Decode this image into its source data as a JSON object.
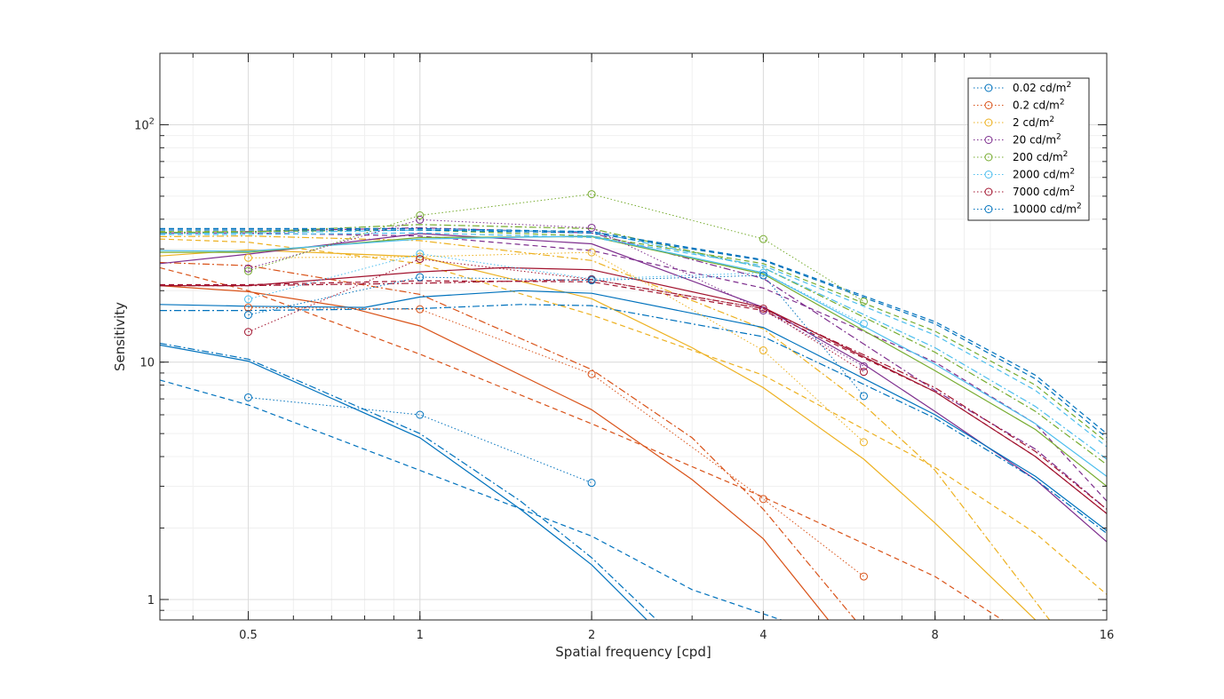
{
  "chart_data": {
    "type": "line",
    "xlabel": "Spatial frequency [cpd]",
    "ylabel": "Sensitivity",
    "x_scale": "log",
    "y_scale": "log",
    "xlim": [
      0.35,
      16
    ],
    "ylim": [
      0.82,
      200
    ],
    "x_ticks": [
      0.5,
      1,
      2,
      4,
      8,
      16
    ],
    "x_tick_labels": [
      "0.5",
      "1",
      "2",
      "4",
      "8",
      "16"
    ],
    "y_ticks": [
      1,
      10,
      100
    ],
    "y_tick_labels": [
      {
        "base": "1",
        "exp": ""
      },
      {
        "base": "10",
        "exp": ""
      },
      {
        "base": "10",
        "exp": "2"
      }
    ],
    "grid": true,
    "legend_position": "top-right",
    "unit_base": "cd/m",
    "unit_exp": "2",
    "series": [
      {
        "name": "0.02",
        "color": "#0072BD",
        "points": [
          [
            0.5,
            7.1
          ],
          [
            1,
            6.0
          ],
          [
            2,
            3.1
          ]
        ]
      },
      {
        "name": "0.2",
        "color": "#D95319",
        "points": [
          [
            0.5,
            17.0
          ],
          [
            1,
            16.7
          ],
          [
            2,
            8.9
          ],
          [
            4,
            2.65
          ],
          [
            6,
            1.25
          ]
        ]
      },
      {
        "name": "2",
        "color": "#EDB120",
        "points": [
          [
            0.5,
            27.5
          ],
          [
            1,
            27.8
          ],
          [
            2,
            29.0
          ],
          [
            4,
            11.2
          ],
          [
            6,
            4.6
          ]
        ]
      },
      {
        "name": "20",
        "color": "#7E2F8E",
        "points": [
          [
            0.5,
            24.8
          ],
          [
            1,
            39.8
          ],
          [
            2,
            36.8
          ],
          [
            4,
            16.5
          ],
          [
            6,
            9.6
          ]
        ]
      },
      {
        "name": "200",
        "color": "#77AC30",
        "points": [
          [
            0.5,
            24.2
          ],
          [
            1,
            41.5
          ],
          [
            2,
            51.0
          ],
          [
            4,
            33.0
          ],
          [
            6,
            18.0
          ]
        ]
      },
      {
        "name": "2000",
        "color": "#4DBEEE",
        "points": [
          [
            0.5,
            18.4
          ],
          [
            1,
            28.6
          ],
          [
            2,
            22.4
          ],
          [
            4,
            23.8
          ],
          [
            6,
            14.5
          ]
        ]
      },
      {
        "name": "7000",
        "color": "#A2142F",
        "points": [
          [
            0.5,
            13.4
          ],
          [
            1,
            27.2
          ],
          [
            2,
            22.3
          ],
          [
            4,
            16.8
          ],
          [
            6,
            9.1
          ]
        ]
      },
      {
        "name": "10000",
        "color": "#0072BD",
        "points": [
          [
            0.5,
            15.8
          ],
          [
            1,
            22.8
          ],
          [
            2,
            22.1
          ],
          [
            4,
            23.2
          ],
          [
            6,
            7.2
          ]
        ]
      }
    ],
    "model_curves": [
      {
        "color": "#0072BD",
        "style": "solid",
        "points": [
          [
            0.35,
            11.8
          ],
          [
            0.5,
            10.1
          ],
          [
            1,
            4.8
          ],
          [
            1.5,
            2.4
          ],
          [
            2,
            1.4
          ],
          [
            2.5,
            0.82
          ]
        ]
      },
      {
        "color": "#0072BD",
        "style": "dashdot",
        "points": [
          [
            0.35,
            12.0
          ],
          [
            0.5,
            10.3
          ],
          [
            1,
            5.0
          ],
          [
            1.5,
            2.6
          ],
          [
            2,
            1.5
          ],
          [
            2.6,
            0.82
          ]
        ]
      },
      {
        "color": "#0072BD",
        "style": "dashed",
        "points": [
          [
            0.35,
            8.4
          ],
          [
            0.5,
            6.6
          ],
          [
            1,
            3.5
          ],
          [
            2,
            1.85
          ],
          [
            3,
            1.1
          ],
          [
            4.3,
            0.82
          ]
        ]
      },
      {
        "color": "#D95319",
        "style": "solid",
        "points": [
          [
            0.35,
            21.0
          ],
          [
            0.5,
            19.8
          ],
          [
            0.75,
            17.0
          ],
          [
            1,
            14.2
          ],
          [
            2,
            6.3
          ],
          [
            3,
            3.2
          ],
          [
            4,
            1.8
          ],
          [
            5.2,
            0.82
          ]
        ]
      },
      {
        "color": "#D95319",
        "style": "dashdot",
        "points": [
          [
            0.35,
            26.3
          ],
          [
            0.5,
            25.5
          ],
          [
            1,
            19.3
          ],
          [
            2,
            9.3
          ],
          [
            3,
            4.8
          ],
          [
            4,
            2.4
          ],
          [
            5.8,
            0.82
          ]
        ]
      },
      {
        "color": "#D95319",
        "style": "dashed",
        "points": [
          [
            0.35,
            25.0
          ],
          [
            0.5,
            20.0
          ],
          [
            1,
            10.8
          ],
          [
            2,
            5.5
          ],
          [
            4,
            2.7
          ],
          [
            8,
            1.25
          ],
          [
            10.5,
            0.82
          ]
        ]
      },
      {
        "color": "#EDB120",
        "style": "solid",
        "points": [
          [
            0.35,
            28.0
          ],
          [
            0.5,
            29.7
          ],
          [
            1,
            27.8
          ],
          [
            2,
            18.5
          ],
          [
            3,
            11.5
          ],
          [
            4,
            7.8
          ],
          [
            6,
            3.9
          ],
          [
            8,
            2.1
          ],
          [
            12,
            0.82
          ]
        ]
      },
      {
        "color": "#EDB120",
        "style": "dashdot",
        "points": [
          [
            0.35,
            33.8
          ],
          [
            0.5,
            34.0
          ],
          [
            1,
            32.5
          ],
          [
            2,
            26.8
          ],
          [
            4,
            13.8
          ],
          [
            6,
            6.6
          ],
          [
            8,
            3.5
          ],
          [
            12.7,
            0.82
          ]
        ]
      },
      {
        "color": "#EDB120",
        "style": "dashed",
        "points": [
          [
            0.35,
            33.0
          ],
          [
            0.5,
            32.0
          ],
          [
            1,
            26.0
          ],
          [
            2,
            15.8
          ],
          [
            4,
            8.8
          ],
          [
            8,
            3.6
          ],
          [
            12,
            1.9
          ],
          [
            16,
            1.05
          ]
        ]
      },
      {
        "color": "#7E2F8E",
        "style": "solid",
        "points": [
          [
            0.35,
            26.0
          ],
          [
            0.5,
            28.5
          ],
          [
            1,
            34.8
          ],
          [
            2,
            31.5
          ],
          [
            4,
            17.0
          ],
          [
            6,
            9.8
          ],
          [
            8,
            6.2
          ],
          [
            12,
            3.2
          ],
          [
            16,
            1.75
          ]
        ]
      },
      {
        "color": "#7E2F8E",
        "style": "dashdot",
        "points": [
          [
            0.35,
            35.0
          ],
          [
            0.5,
            35.5
          ],
          [
            1,
            36.8
          ],
          [
            2,
            35.0
          ],
          [
            4,
            22.5
          ],
          [
            8,
            7.6
          ],
          [
            12,
            4.3
          ],
          [
            16,
            2.4
          ]
        ]
      },
      {
        "color": "#7E2F8E",
        "style": "dashed",
        "points": [
          [
            0.35,
            35.0
          ],
          [
            0.5,
            35.0
          ],
          [
            1,
            34.0
          ],
          [
            2,
            29.5
          ],
          [
            4,
            20.5
          ],
          [
            8,
            10.0
          ],
          [
            12,
            5.5
          ],
          [
            16,
            2.6
          ]
        ]
      },
      {
        "color": "#77AC30",
        "style": "solid",
        "points": [
          [
            0.35,
            29.0
          ],
          [
            0.5,
            29.0
          ],
          [
            1,
            33.5
          ],
          [
            2,
            33.8
          ],
          [
            4,
            23.5
          ],
          [
            8,
            9.2
          ],
          [
            12,
            5.2
          ],
          [
            16,
            3.0
          ]
        ]
      },
      {
        "color": "#77AC30",
        "style": "dashdot",
        "points": [
          [
            0.35,
            35.2
          ],
          [
            0.5,
            35.3
          ],
          [
            1,
            38.0
          ],
          [
            2,
            36.5
          ],
          [
            4,
            25.0
          ],
          [
            8,
            11.0
          ],
          [
            12,
            6.2
          ],
          [
            16,
            3.7
          ]
        ]
      },
      {
        "color": "#77AC30",
        "style": "dashed",
        "points": [
          [
            0.35,
            35.5
          ],
          [
            0.5,
            35.5
          ],
          [
            1,
            36.0
          ],
          [
            2,
            34.0
          ],
          [
            4,
            26.0
          ],
          [
            8,
            13.5
          ],
          [
            12,
            8.0
          ],
          [
            16,
            4.6
          ]
        ]
      },
      {
        "color": "#4DBEEE",
        "style": "solid",
        "points": [
          [
            0.35,
            29.5
          ],
          [
            0.5,
            29.3
          ],
          [
            1,
            33.0
          ],
          [
            2,
            34.0
          ],
          [
            4,
            23.8
          ],
          [
            8,
            9.8
          ],
          [
            12,
            5.5
          ],
          [
            16,
            3.3
          ]
        ]
      },
      {
        "color": "#4DBEEE",
        "style": "dashdot",
        "points": [
          [
            0.35,
            34.8
          ],
          [
            0.5,
            35.0
          ],
          [
            1,
            36.0
          ],
          [
            2,
            35.5
          ],
          [
            4,
            25.0
          ],
          [
            8,
            11.5
          ],
          [
            12,
            6.5
          ],
          [
            16,
            3.9
          ]
        ]
      },
      {
        "color": "#4DBEEE",
        "style": "dashed",
        "points": [
          [
            0.35,
            34.5
          ],
          [
            0.5,
            34.5
          ],
          [
            1,
            35.0
          ],
          [
            2,
            33.5
          ],
          [
            4,
            25.5
          ],
          [
            8,
            13.0
          ],
          [
            12,
            7.6
          ],
          [
            16,
            4.4
          ]
        ]
      },
      {
        "color": "#A2142F",
        "style": "solid",
        "points": [
          [
            0.35,
            21.0
          ],
          [
            0.5,
            21.0
          ],
          [
            1,
            24.0
          ],
          [
            1.4,
            25.0
          ],
          [
            2,
            24.5
          ],
          [
            4,
            17.0
          ],
          [
            8,
            7.5
          ],
          [
            12,
            4.0
          ],
          [
            16,
            2.3
          ]
        ]
      },
      {
        "color": "#A2142F",
        "style": "dashdot",
        "points": [
          [
            0.35,
            21.0
          ],
          [
            0.5,
            21.0
          ],
          [
            1,
            21.5
          ],
          [
            2,
            22.3
          ],
          [
            4,
            16.8
          ],
          [
            8,
            7.8
          ],
          [
            12,
            4.2
          ],
          [
            16,
            2.4
          ]
        ]
      },
      {
        "color": "#A2142F",
        "style": "dashed",
        "points": [
          [
            0.35,
            21.2
          ],
          [
            0.5,
            21.2
          ],
          [
            1,
            22.0
          ],
          [
            2,
            21.8
          ],
          [
            4,
            16.5
          ],
          [
            8,
            7.5
          ],
          [
            12,
            4.0
          ],
          [
            16,
            2.3
          ]
        ]
      },
      {
        "color": "#0072BD",
        "style": "solid",
        "points": [
          [
            0.35,
            17.5
          ],
          [
            0.5,
            17.2
          ],
          [
            0.8,
            17.0
          ],
          [
            1,
            18.8
          ],
          [
            1.5,
            20.0
          ],
          [
            2,
            19.5
          ],
          [
            4,
            14.0
          ],
          [
            8,
            6.0
          ],
          [
            12,
            3.3
          ],
          [
            16,
            1.95
          ]
        ]
      },
      {
        "color": "#0072BD",
        "style": "dashdot",
        "points": [
          [
            0.35,
            16.5
          ],
          [
            0.5,
            16.5
          ],
          [
            1,
            16.8
          ],
          [
            1.5,
            17.5
          ],
          [
            2,
            17.3
          ],
          [
            4,
            12.8
          ],
          [
            8,
            5.8
          ],
          [
            12,
            3.2
          ],
          [
            16,
            1.9
          ]
        ]
      },
      {
        "color": "#0072BD",
        "style": "dashed",
        "points": [
          [
            0.35,
            36.0
          ],
          [
            0.5,
            36.0
          ],
          [
            1,
            36.0
          ],
          [
            2,
            35.0
          ],
          [
            4,
            26.8
          ],
          [
            8,
            14.5
          ],
          [
            12,
            8.5
          ],
          [
            16,
            4.8
          ]
        ]
      },
      {
        "color": "#0072BD",
        "style": "dashed",
        "points": [
          [
            0.35,
            36.5
          ],
          [
            0.5,
            36.5
          ],
          [
            1,
            36.5
          ],
          [
            2,
            35.5
          ],
          [
            4,
            27.0
          ],
          [
            8,
            14.8
          ],
          [
            12,
            8.8
          ],
          [
            16,
            5.0
          ]
        ]
      }
    ]
  }
}
